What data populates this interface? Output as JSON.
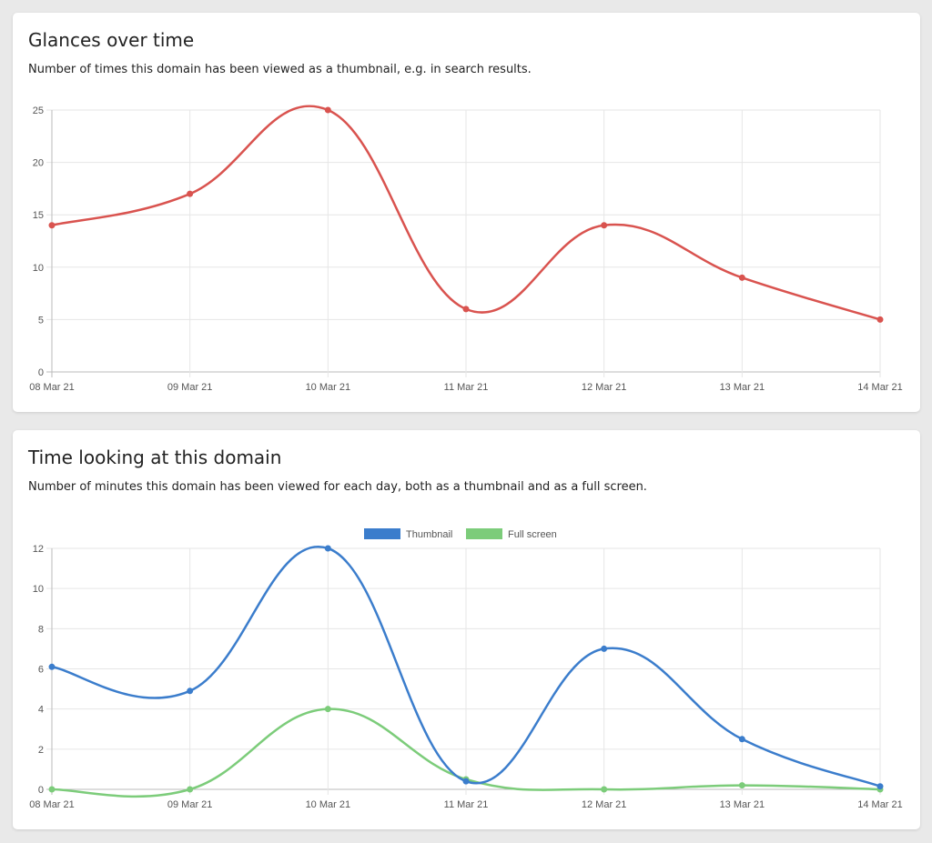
{
  "charts": [
    {
      "title": "Glances over time",
      "description": "Number of times this domain has been viewed as a thumbnail, e.g. in search results."
    },
    {
      "title": "Time looking at this domain",
      "description": "Number of minutes this domain has been viewed for each day, both as a thumbnail and as a full screen."
    }
  ],
  "chart_data": [
    {
      "type": "line",
      "x": [
        "08 Mar 21",
        "09 Mar 21",
        "10 Mar 21",
        "11 Mar 21",
        "12 Mar 21",
        "13 Mar 21",
        "14 Mar 21"
      ],
      "series": [
        {
          "values": [
            14,
            17,
            25,
            6,
            14,
            9,
            5
          ],
          "color": "#d9534f"
        }
      ],
      "ylim": [
        0,
        25
      ],
      "yticks": [
        0,
        5,
        10,
        15,
        20,
        25
      ],
      "grid": true,
      "legend": "none"
    },
    {
      "type": "line",
      "x": [
        "08 Mar 21",
        "09 Mar 21",
        "10 Mar 21",
        "11 Mar 21",
        "12 Mar 21",
        "13 Mar 21",
        "14 Mar 21"
      ],
      "series": [
        {
          "name": "Thumbnail",
          "values": [
            6.1,
            4.9,
            12,
            0.4,
            7,
            2.5,
            0.15
          ],
          "color": "#3b7dcc"
        },
        {
          "name": "Full screen",
          "values": [
            0,
            0,
            4,
            0.5,
            0,
            0.2,
            0
          ],
          "color": "#7ccc7a"
        }
      ],
      "ylim": [
        0,
        12
      ],
      "yticks": [
        0,
        2,
        4,
        6,
        8,
        10,
        12
      ],
      "grid": true,
      "legend": "top"
    }
  ]
}
